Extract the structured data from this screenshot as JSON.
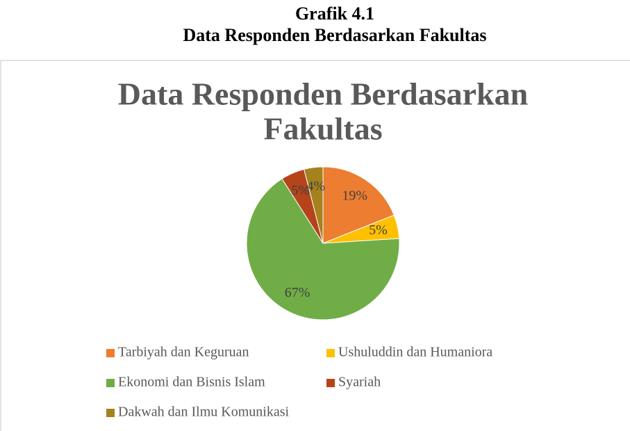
{
  "caption": [
    "Grafik 4.1",
    "Data Responden Berdasarkan Fakultas"
  ],
  "chart_data": {
    "type": "pie",
    "title": [
      "Data Responden Berdasarkan",
      "Fakultas"
    ],
    "categories": [
      "Tarbiyah dan Keguruan",
      "Ushuluddin dan Humaniora",
      "Ekonomi dan Bisnis Islam",
      "Syariah",
      "Dakwah dan Ilmu Komunikasi"
    ],
    "values": [
      19,
      5,
      67,
      5,
      4
    ],
    "value_labels": [
      "19%",
      "5%",
      "67%",
      "5%",
      "4%"
    ],
    "colors": [
      "#ed7d31",
      "#ffc000",
      "#70ad47",
      "#b5441a",
      "#a5821e"
    ],
    "legend": "bottom"
  }
}
